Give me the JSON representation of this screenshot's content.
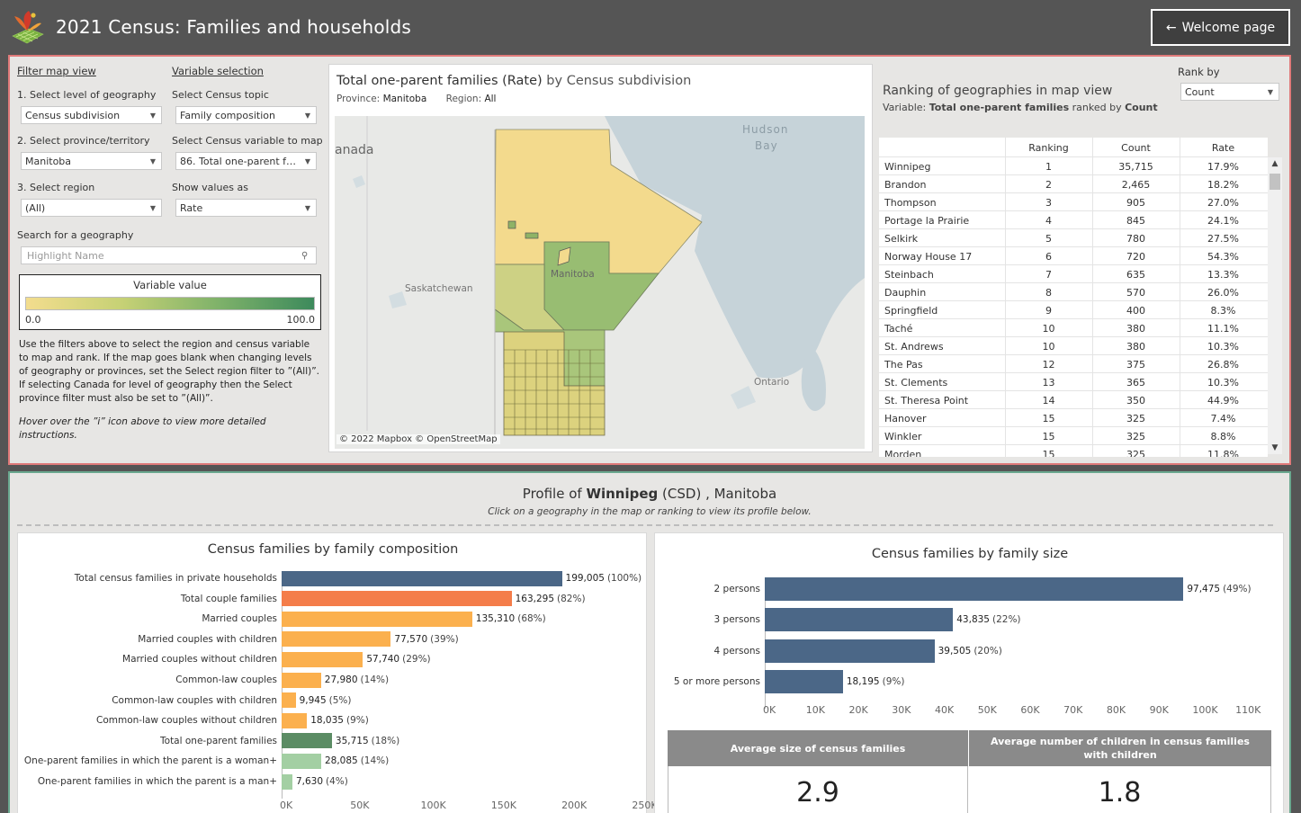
{
  "header": {
    "title": "2021 Census: Families and households",
    "welcome_label": "Welcome page",
    "back_icon": "arrow-left-icon"
  },
  "filters": {
    "filter_map_view": "Filter map view",
    "variable_selection": "Variable selection",
    "level_label": "1. Select level of geography",
    "level_value": "Census subdivision",
    "province_label": "2. Select province/territory",
    "province_value": "Manitoba",
    "region_label": "3. Select region",
    "region_value": "(All)",
    "topic_label": "Select Census topic",
    "topic_value": "Family composition",
    "variable_label": "Select Census variable to map",
    "variable_value": "86.  Total one-parent fa...",
    "show_label": "Show values as",
    "show_value": "Rate",
    "search_label": "Search for a geography",
    "search_placeholder": "Highlight Name",
    "legend_title": "Variable value",
    "legend_min": "0.0",
    "legend_max": "100.0",
    "note1_a": "Use the filters above to select the region and census variable to map and rank. ",
    "note1_b": "If the map goes blank when changing levels of geography or provinces, set the Select region filter to ”(All)”. If selecting Canada for level of geography then the Select province filter must also be set to ”(All)”.",
    "note2": "Hover over the ”i” icon above to view more detailed instructions."
  },
  "map": {
    "title_main": "Total one-parent families (Rate)",
    "title_by": " by Census subdivision",
    "province_label": "Province:",
    "province_value": "Manitoba",
    "region_label": "Region:",
    "region_value": "All",
    "labels": {
      "canada": "anada",
      "hudson1": "Hudson",
      "hudson2": "Bay",
      "saskatchewan": "Saskatchewan",
      "manitoba": "Manitoba",
      "ontario": "Ontario"
    },
    "attribution": "© 2022 Mapbox © OpenStreetMap"
  },
  "ranking": {
    "rank_by_label": "Rank by",
    "rank_by_value": "Count",
    "title": "Ranking of geographies in map view",
    "subtitle_prefix": "Variable: ",
    "subtitle_var": "Total one-parent families",
    "subtitle_mid": " ranked by ",
    "subtitle_by": "Count",
    "columns": [
      "Ranking",
      "Count",
      "Rate"
    ],
    "rows": [
      {
        "name": "Winnipeg",
        "rank": "1",
        "count": "35,715",
        "rate": "17.9%"
      },
      {
        "name": "Brandon",
        "rank": "2",
        "count": "2,465",
        "rate": "18.2%"
      },
      {
        "name": "Thompson",
        "rank": "3",
        "count": "905",
        "rate": "27.0%"
      },
      {
        "name": "Portage la Prairie",
        "rank": "4",
        "count": "845",
        "rate": "24.1%"
      },
      {
        "name": "Selkirk",
        "rank": "5",
        "count": "780",
        "rate": "27.5%"
      },
      {
        "name": "Norway House 17",
        "rank": "6",
        "count": "720",
        "rate": "54.3%"
      },
      {
        "name": "Steinbach",
        "rank": "7",
        "count": "635",
        "rate": "13.3%"
      },
      {
        "name": "Dauphin",
        "rank": "8",
        "count": "570",
        "rate": "26.0%"
      },
      {
        "name": "Springfield",
        "rank": "9",
        "count": "400",
        "rate": "8.3%"
      },
      {
        "name": "Taché",
        "rank": "10",
        "count": "380",
        "rate": "11.1%"
      },
      {
        "name": "St. Andrews",
        "rank": "10",
        "count": "380",
        "rate": "10.3%"
      },
      {
        "name": "The Pas",
        "rank": "12",
        "count": "375",
        "rate": "26.8%"
      },
      {
        "name": "St. Clements",
        "rank": "13",
        "count": "365",
        "rate": "10.3%"
      },
      {
        "name": "St. Theresa Point",
        "rank": "14",
        "count": "350",
        "rate": "44.9%"
      },
      {
        "name": "Hanover",
        "rank": "15",
        "count": "325",
        "rate": "7.4%"
      },
      {
        "name": "Winkler",
        "rank": "15",
        "count": "325",
        "rate": "8.8%"
      },
      {
        "name": "Morden",
        "rank": "15",
        "count": "325",
        "rate": "11.8%"
      }
    ]
  },
  "profile": {
    "prefix": "Profile of ",
    "name": "Winnipeg",
    "suffix": " (CSD) , Manitoba",
    "subtitle": "Click on a geography in the map or ranking to view its profile below."
  },
  "composition_chart": {
    "title": "Census families by family composition",
    "ticks": [
      "0K",
      "50K",
      "100K",
      "150K",
      "200K",
      "250K"
    ]
  },
  "size_chart": {
    "title": "Census families by family size",
    "ticks": [
      "0K",
      "10K",
      "20K",
      "30K",
      "40K",
      "50K",
      "60K",
      "70K",
      "80K",
      "90K",
      "100K",
      "110K"
    ]
  },
  "stats": {
    "avg_size_label": "Average size of census families",
    "avg_size_value": "2.9",
    "avg_children_label": "Average number of children in census families with children",
    "avg_children_value": "1.8"
  },
  "colors": {
    "bar_navy": "#4b6787",
    "bar_orange": "#f47d4a",
    "bar_yellow": "#fbb04e",
    "bar_green": "#5b8c64",
    "bar_lightgreen": "#a3cfa3",
    "legend_low": "#f3dd8e",
    "legend_high": "#3d8a5c"
  },
  "chart_data": [
    {
      "type": "bar",
      "orientation": "horizontal",
      "title": "Census families by family composition",
      "categories": [
        "Total census families in private households",
        "Total couple families",
        "Married couples",
        "Married couples with children",
        "Married couples without children",
        "Common-law couples",
        "Common-law couples with children",
        "Common-law couples without children",
        "Total one-parent families",
        "One-parent families in which the parent is a woman+",
        "One-parent families in which the parent is a man+"
      ],
      "values": [
        199005,
        163295,
        135310,
        77570,
        57740,
        27980,
        9945,
        18035,
        35715,
        28085,
        7630
      ],
      "labels": [
        "199,005",
        "163,295",
        "135,310",
        "77,570",
        "57,740",
        "27,980",
        "9,945",
        "18,035",
        "35,715",
        "28,085",
        "7,630"
      ],
      "percents": [
        "(100%)",
        "(82%)",
        "(68%)",
        "(39%)",
        "(29%)",
        "(14%)",
        "(5%)",
        "(9%)",
        "(18%)",
        "(14%)",
        "(4%)"
      ],
      "colors": [
        "#4b6787",
        "#f47d4a",
        "#fbb04e",
        "#fbb04e",
        "#fbb04e",
        "#fbb04e",
        "#fbb04e",
        "#fbb04e",
        "#5b8c64",
        "#a3cfa3",
        "#a3cfa3"
      ],
      "xlim": [
        0,
        260000
      ]
    },
    {
      "type": "bar",
      "orientation": "horizontal",
      "title": "Census families by family size",
      "categories": [
        "2 persons",
        "3 persons",
        "4 persons",
        "5 or more persons"
      ],
      "values": [
        97475,
        43835,
        39505,
        18195
      ],
      "labels": [
        "97,475",
        "43,835",
        "39,505",
        "18,195"
      ],
      "percents": [
        "(49%)",
        "(22%)",
        "(20%)",
        "(9%)"
      ],
      "colors": [
        "#4b6787",
        "#4b6787",
        "#4b6787",
        "#4b6787"
      ],
      "xlim": [
        0,
        115000
      ]
    }
  ]
}
